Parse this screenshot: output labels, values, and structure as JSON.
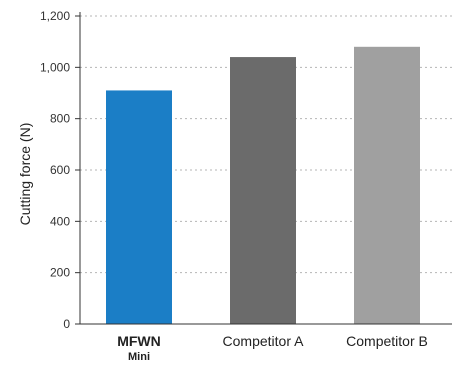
{
  "chart_data": {
    "type": "bar",
    "categories": [
      "MFWN Mini",
      "Competitor A",
      "Competitor B"
    ],
    "category_labels": [
      {
        "main": "MFWN",
        "sub": "Mini",
        "bold": true
      },
      {
        "main": "Competitor A",
        "sub": "",
        "bold": false
      },
      {
        "main": "Competitor B",
        "sub": "",
        "bold": false
      }
    ],
    "values": [
      910,
      1040,
      1080
    ],
    "colors": [
      "#1b7ec6",
      "#6b6b6b",
      "#a0a0a0"
    ],
    "title": "",
    "xlabel": "",
    "ylabel": "Cutting force (N)",
    "ylim": [
      0,
      1200
    ],
    "yticks": [
      0,
      200,
      400,
      600,
      800,
      1000,
      1200
    ],
    "ytick_labels": [
      "0",
      "200",
      "400",
      "600",
      "800",
      "1,000",
      "1,200"
    ],
    "grid": true,
    "grid_style": "dotted",
    "legend": "none"
  }
}
